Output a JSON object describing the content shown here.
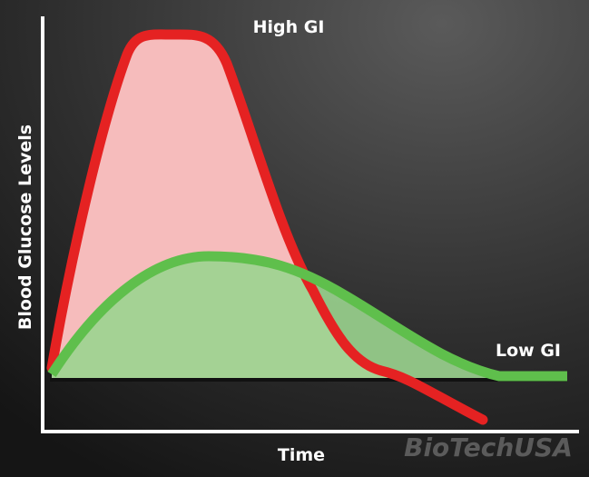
{
  "diagram": {
    "curves": [
      {
        "label": "High GI"
      },
      {
        "label": "Low GI"
      }
    ],
    "axes": {
      "y_label": "Blood Glucose Levels",
      "x_label": "Time"
    },
    "watermark": "BioTechUSA"
  }
}
